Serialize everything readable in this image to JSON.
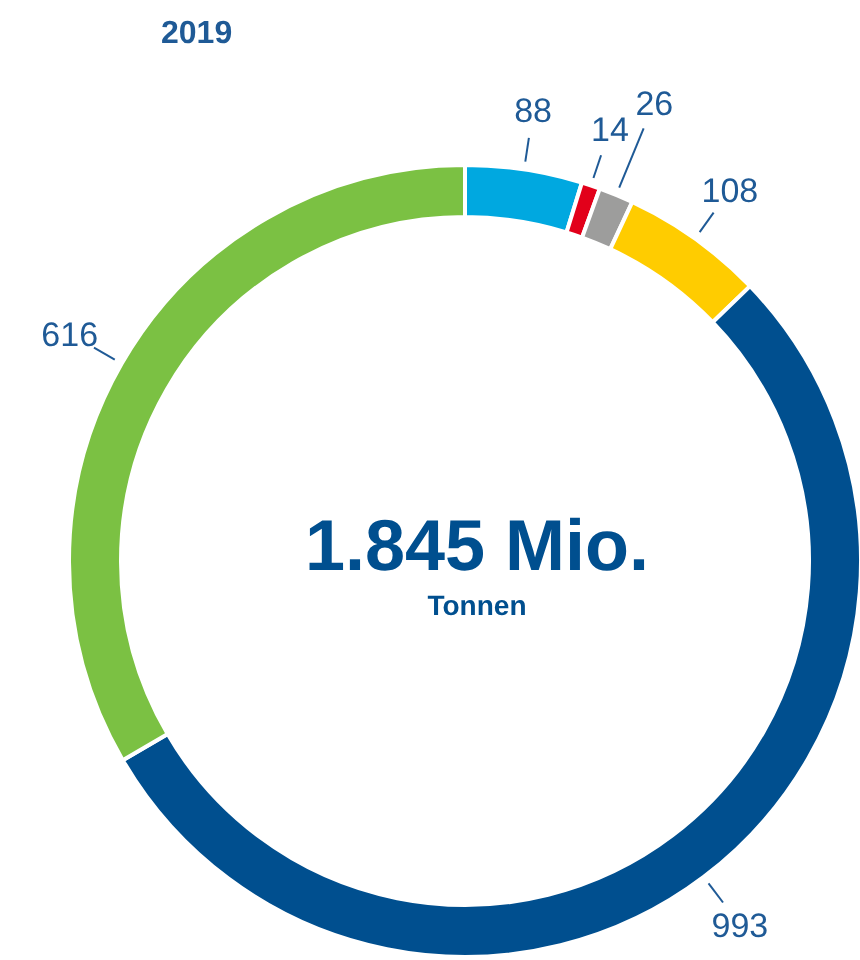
{
  "chart_data": {
    "type": "donut",
    "title": "2019",
    "categories": [
      null,
      null,
      null,
      null,
      null,
      null
    ],
    "values": [
      88,
      14,
      26,
      108,
      993,
      616
    ],
    "colors": [
      "#00a8e0",
      "#e2001a",
      "#9d9d9c",
      "#ffcc00",
      "#004f8f",
      "#7bc143"
    ],
    "data_labels": true,
    "annotations": [
      "1.845 Mio.",
      "Tonnen"
    ]
  }
}
